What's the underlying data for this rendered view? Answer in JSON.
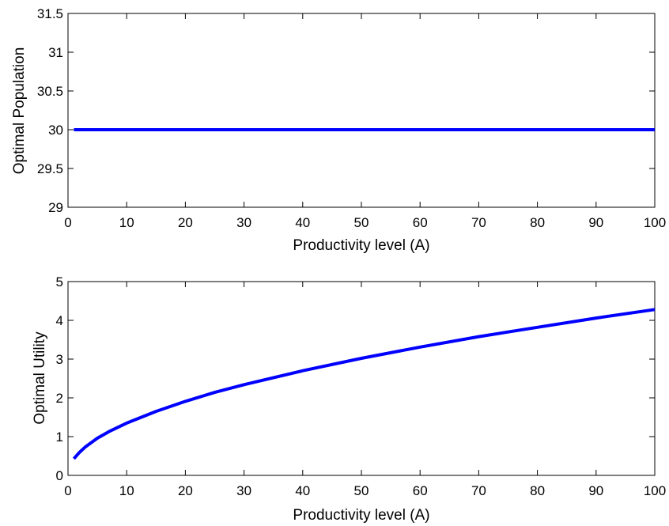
{
  "chart_data": [
    {
      "type": "line",
      "title": "",
      "xlabel": "Productivity level (A)",
      "ylabel": "Optimal Population",
      "xlim": [
        0,
        100
      ],
      "ylim": [
        29,
        31.5
      ],
      "xticks": [
        0,
        10,
        20,
        30,
        40,
        50,
        60,
        70,
        80,
        90,
        100
      ],
      "yticks": [
        29,
        29.5,
        30,
        30.5,
        31,
        31.5
      ],
      "xtick_labels": [
        "0",
        "10",
        "20",
        "30",
        "40",
        "50",
        "60",
        "70",
        "80",
        "90",
        "100"
      ],
      "ytick_labels": [
        "29",
        "29.5",
        "30",
        "30.5",
        "31",
        "31.5"
      ],
      "grid": false,
      "line_color": "#0000ff",
      "series": [
        {
          "x": [
            1,
            100
          ],
          "y": [
            30,
            30
          ]
        }
      ]
    },
    {
      "type": "line",
      "title": "",
      "xlabel": "Productivity level (A)",
      "ylabel": "Optimal Utility",
      "xlim": [
        0,
        100
      ],
      "ylim": [
        0,
        5
      ],
      "xticks": [
        0,
        10,
        20,
        30,
        40,
        50,
        60,
        70,
        80,
        90,
        100
      ],
      "yticks": [
        0,
        1,
        2,
        3,
        4,
        5
      ],
      "xtick_labels": [
        "0",
        "10",
        "20",
        "30",
        "40",
        "50",
        "60",
        "70",
        "80",
        "90",
        "100"
      ],
      "ytick_labels": [
        "0",
        "1",
        "2",
        "3",
        "4",
        "5"
      ],
      "grid": false,
      "line_color": "#0000ff",
      "series": [
        {
          "x": [
            1,
            2,
            3,
            5,
            7,
            10,
            15,
            20,
            25,
            30,
            40,
            50,
            60,
            70,
            80,
            90,
            100
          ],
          "y": [
            0.43,
            0.6,
            0.74,
            0.96,
            1.13,
            1.35,
            1.65,
            1.91,
            2.14,
            2.34,
            2.7,
            3.02,
            3.31,
            3.58,
            3.82,
            4.06,
            4.28
          ]
        }
      ]
    }
  ]
}
